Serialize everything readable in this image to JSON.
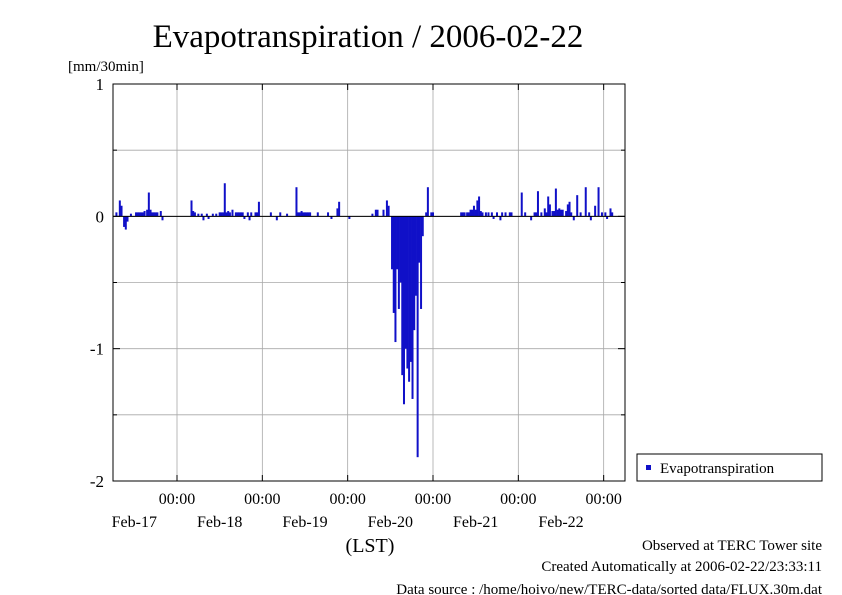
{
  "title": "Evapotranspiration / 2006-02-22",
  "footer": {
    "observed": "Observed at TERC Tower site",
    "created": "Created Automatically at 2006-02-22/23:33:11",
    "source": "Data source : /home/hoivo/new/TERC-data/sorted  data/FLUX.30m.dat"
  },
  "chart_data": {
    "type": "bar",
    "ylabel": "[mm/30min]",
    "xlabel": "(LST)",
    "ylim": [
      -2,
      1
    ],
    "yticks": [
      1,
      0,
      -1,
      -2
    ],
    "y_minor_grid": [
      0.5,
      -0.5,
      -1.5
    ],
    "xlim_days": [
      16.25,
      22.25
    ],
    "time_ticks": [
      {
        "time": "00:00",
        "date": "Feb-17",
        "pos": 17
      },
      {
        "time": "00:00",
        "date": "Feb-18",
        "pos": 18
      },
      {
        "time": "00:00",
        "date": "Feb-19",
        "pos": 19
      },
      {
        "time": "00:00",
        "date": "Feb-20",
        "pos": 20
      },
      {
        "time": "00:00",
        "date": "Feb-21",
        "pos": 21
      },
      {
        "time": "00:00",
        "date": "Feb-22",
        "pos": 22
      }
    ],
    "grid": true,
    "legend_position": "right",
    "series": [
      {
        "name": "Evapotranspiration",
        "color": "#1010c8",
        "points": [
          [
            16.29,
            0.03
          ],
          [
            16.33,
            0.12
          ],
          [
            16.35,
            0.08
          ],
          [
            16.38,
            -0.08
          ],
          [
            16.4,
            -0.1
          ],
          [
            16.42,
            -0.04
          ],
          [
            16.46,
            0.02
          ],
          [
            16.52,
            0.03
          ],
          [
            16.54,
            0.03
          ],
          [
            16.56,
            0.03
          ],
          [
            16.58,
            0.03
          ],
          [
            16.6,
            0.03
          ],
          [
            16.62,
            0.04
          ],
          [
            16.65,
            0.05
          ],
          [
            16.67,
            0.18
          ],
          [
            16.69,
            0.05
          ],
          [
            16.71,
            0.03
          ],
          [
            16.73,
            0.03
          ],
          [
            16.75,
            0.03
          ],
          [
            16.77,
            0.03
          ],
          [
            16.81,
            0.04
          ],
          [
            16.83,
            -0.03
          ],
          [
            17.17,
            0.12
          ],
          [
            17.19,
            0.04
          ],
          [
            17.21,
            0.03
          ],
          [
            17.25,
            0.02
          ],
          [
            17.29,
            0.02
          ],
          [
            17.31,
            -0.03
          ],
          [
            17.35,
            0.02
          ],
          [
            17.37,
            -0.02
          ],
          [
            17.42,
            0.02
          ],
          [
            17.46,
            0.02
          ],
          [
            17.5,
            0.03
          ],
          [
            17.52,
            0.03
          ],
          [
            17.54,
            0.03
          ],
          [
            17.56,
            0.25
          ],
          [
            17.58,
            0.03
          ],
          [
            17.6,
            0.04
          ],
          [
            17.62,
            0.03
          ],
          [
            17.65,
            0.05
          ],
          [
            17.69,
            0.03
          ],
          [
            17.71,
            0.03
          ],
          [
            17.73,
            0.03
          ],
          [
            17.75,
            0.03
          ],
          [
            17.77,
            0.03
          ],
          [
            17.79,
            -0.02
          ],
          [
            17.83,
            0.03
          ],
          [
            17.85,
            -0.03
          ],
          [
            17.87,
            0.03
          ],
          [
            17.92,
            0.03
          ],
          [
            17.94,
            0.03
          ],
          [
            17.96,
            0.11
          ],
          [
            18.1,
            0.03
          ],
          [
            18.17,
            -0.03
          ],
          [
            18.21,
            0.03
          ],
          [
            18.29,
            0.02
          ],
          [
            18.4,
            0.22
          ],
          [
            18.42,
            0.03
          ],
          [
            18.44,
            0.03
          ],
          [
            18.46,
            0.04
          ],
          [
            18.48,
            0.03
          ],
          [
            18.5,
            0.03
          ],
          [
            18.52,
            0.03
          ],
          [
            18.54,
            0.03
          ],
          [
            18.56,
            0.03
          ],
          [
            18.65,
            0.03
          ],
          [
            18.77,
            0.03
          ],
          [
            18.81,
            -0.02
          ],
          [
            18.88,
            0.06
          ],
          [
            18.9,
            0.11
          ],
          [
            19.02,
            -0.02
          ],
          [
            19.29,
            0.02
          ],
          [
            19.33,
            0.05
          ],
          [
            19.35,
            0.05
          ],
          [
            19.42,
            0.05
          ],
          [
            19.46,
            0.12
          ],
          [
            19.48,
            0.08
          ],
          [
            19.52,
            -0.4
          ],
          [
            19.54,
            -0.73
          ],
          [
            19.56,
            -0.95
          ],
          [
            19.58,
            -0.4
          ],
          [
            19.6,
            -0.7
          ],
          [
            19.62,
            -0.5
          ],
          [
            19.64,
            -1.2
          ],
          [
            19.66,
            -1.42
          ],
          [
            19.68,
            -1.0
          ],
          [
            19.7,
            -1.15
          ],
          [
            19.72,
            -1.25
          ],
          [
            19.74,
            -1.1
          ],
          [
            19.76,
            -1.38
          ],
          [
            19.78,
            -0.86
          ],
          [
            19.8,
            -0.6
          ],
          [
            19.82,
            -1.82
          ],
          [
            19.84,
            -0.35
          ],
          [
            19.86,
            -0.7
          ],
          [
            19.88,
            -0.15
          ],
          [
            19.92,
            0.03
          ],
          [
            19.94,
            0.22
          ],
          [
            19.98,
            0.03
          ],
          [
            20.0,
            0.03
          ],
          [
            20.33,
            0.03
          ],
          [
            20.35,
            0.03
          ],
          [
            20.37,
            0.03
          ],
          [
            20.4,
            0.03
          ],
          [
            20.42,
            0.03
          ],
          [
            20.44,
            0.05
          ],
          [
            20.46,
            0.05
          ],
          [
            20.48,
            0.08
          ],
          [
            20.5,
            0.05
          ],
          [
            20.52,
            0.12
          ],
          [
            20.54,
            0.15
          ],
          [
            20.56,
            0.04
          ],
          [
            20.58,
            0.03
          ],
          [
            20.62,
            0.03
          ],
          [
            20.65,
            0.03
          ],
          [
            20.69,
            0.03
          ],
          [
            20.71,
            -0.02
          ],
          [
            20.75,
            0.03
          ],
          [
            20.79,
            -0.03
          ],
          [
            20.81,
            0.03
          ],
          [
            20.85,
            0.03
          ],
          [
            20.9,
            0.03
          ],
          [
            20.92,
            0.03
          ],
          [
            21.04,
            0.18
          ],
          [
            21.08,
            0.03
          ],
          [
            21.15,
            -0.03
          ],
          [
            21.19,
            0.03
          ],
          [
            21.21,
            0.03
          ],
          [
            21.23,
            0.19
          ],
          [
            21.27,
            0.03
          ],
          [
            21.31,
            0.06
          ],
          [
            21.33,
            0.03
          ],
          [
            21.35,
            0.15
          ],
          [
            21.37,
            0.09
          ],
          [
            21.4,
            0.04
          ],
          [
            21.42,
            0.04
          ],
          [
            21.44,
            0.21
          ],
          [
            21.46,
            0.05
          ],
          [
            21.48,
            0.06
          ],
          [
            21.5,
            0.05
          ],
          [
            21.52,
            0.05
          ],
          [
            21.56,
            0.04
          ],
          [
            21.58,
            0.09
          ],
          [
            21.6,
            0.11
          ],
          [
            21.62,
            0.03
          ],
          [
            21.65,
            -0.03
          ],
          [
            21.69,
            0.16
          ],
          [
            21.73,
            0.03
          ],
          [
            21.79,
            0.22
          ],
          [
            21.83,
            0.03
          ],
          [
            21.85,
            -0.03
          ],
          [
            21.9,
            0.08
          ],
          [
            21.94,
            0.22
          ],
          [
            21.98,
            0.03
          ],
          [
            22.02,
            0.03
          ],
          [
            22.04,
            -0.02
          ],
          [
            22.08,
            0.06
          ],
          [
            22.1,
            0.03
          ]
        ]
      }
    ]
  }
}
